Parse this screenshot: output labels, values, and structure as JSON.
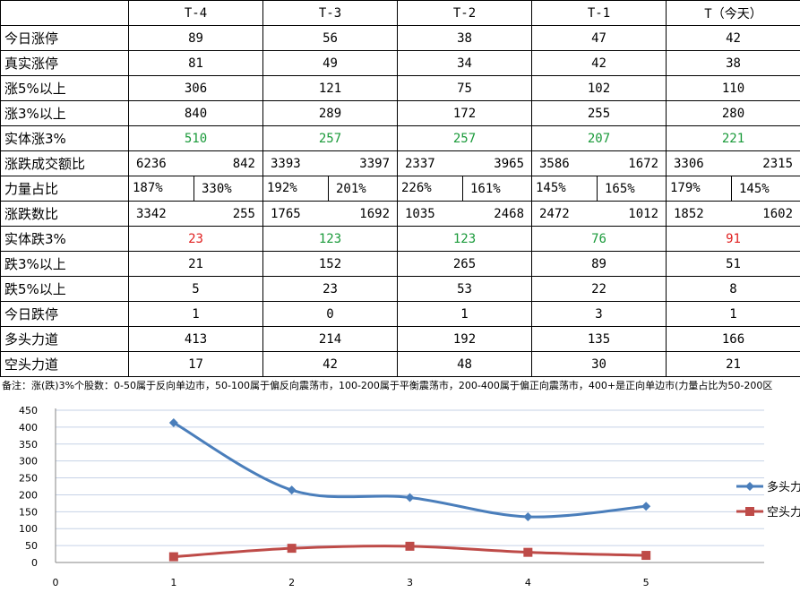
{
  "table": {
    "headers": [
      "",
      "T-4",
      "T-3",
      "T-2",
      "T-1",
      "T（今天）"
    ],
    "rows": [
      {
        "label": "今日涨停",
        "type": "single",
        "values": [
          "89",
          "56",
          "38",
          "47",
          "42"
        ]
      },
      {
        "label": "真实涨停",
        "type": "single",
        "values": [
          "81",
          "49",
          "34",
          "42",
          "38"
        ]
      },
      {
        "label": "涨5%以上",
        "type": "single",
        "values": [
          "306",
          "121",
          "75",
          "102",
          "110"
        ]
      },
      {
        "label": "涨3%以上",
        "type": "single",
        "values": [
          "840",
          "289",
          "172",
          "255",
          "280"
        ]
      },
      {
        "label": "实体涨3%",
        "type": "single",
        "values": [
          "510",
          "257",
          "257",
          "207",
          "221"
        ],
        "colors": [
          "green",
          "green",
          "green",
          "green",
          "green"
        ]
      },
      {
        "label": "涨跌成交额比",
        "type": "pair",
        "values": [
          [
            "6236",
            "842"
          ],
          [
            "3393",
            "3397"
          ],
          [
            "2337",
            "3965"
          ],
          [
            "3586",
            "1672"
          ],
          [
            "3306",
            "2315"
          ]
        ]
      },
      {
        "label": "力量占比",
        "type": "boxed",
        "values": [
          [
            "187%",
            "330%"
          ],
          [
            "192%",
            "201%"
          ],
          [
            "226%",
            "161%"
          ],
          [
            "145%",
            "165%"
          ],
          [
            "179%",
            "145%"
          ]
        ]
      },
      {
        "label": "涨跌数比",
        "type": "pair",
        "values": [
          [
            "3342",
            "255"
          ],
          [
            "1765",
            "1692"
          ],
          [
            "1035",
            "2468"
          ],
          [
            "2472",
            "1012"
          ],
          [
            "1852",
            "1602"
          ]
        ]
      },
      {
        "label": "实体跌3%",
        "type": "single",
        "values": [
          "23",
          "123",
          "123",
          "76",
          "91"
        ],
        "colors": [
          "red",
          "green",
          "green",
          "green",
          "red"
        ]
      },
      {
        "label": "跌3%以上",
        "type": "single",
        "values": [
          "21",
          "152",
          "265",
          "89",
          "51"
        ]
      },
      {
        "label": "跌5%以上",
        "type": "single",
        "values": [
          "5",
          "23",
          "53",
          "22",
          "8"
        ]
      },
      {
        "label": "今日跌停",
        "type": "single",
        "values": [
          "1",
          "0",
          "1",
          "3",
          "1"
        ]
      },
      {
        "label": "多头力道",
        "type": "single",
        "values": [
          "413",
          "214",
          "192",
          "135",
          "166"
        ]
      },
      {
        "label": "空头力道",
        "type": "single",
        "values": [
          "17",
          "42",
          "48",
          "30",
          "21"
        ]
      }
    ]
  },
  "note": "备注：涨(跌)3%个股数：0-50属于反向单边市，50-100属于偏反向震荡市，100-200属于平衡震荡市，200-400属于偏正向震荡市，400+是正向单边市(力量占比为50-200区",
  "colors": {
    "green": "#1a9a3a",
    "red": "#e02020",
    "bull": "#4a7ebb",
    "bear": "#be4b48",
    "grid": "#c6d2e6"
  },
  "chart_data": {
    "type": "line",
    "title": "",
    "xlabel": "",
    "ylabel": "",
    "xlim": [
      0,
      6
    ],
    "ylim": [
      0,
      450
    ],
    "yticks": [
      0,
      50,
      100,
      150,
      200,
      250,
      300,
      350,
      400,
      450
    ],
    "xticks": [
      0,
      1,
      2,
      3,
      4,
      5
    ],
    "grid": true,
    "legend": "right",
    "smooth": true,
    "x": [
      1,
      2,
      3,
      4,
      5
    ],
    "series": [
      {
        "name": "多头力道",
        "values": [
          413,
          214,
          192,
          135,
          166
        ],
        "color": "#4a7ebb",
        "marker": "diamond"
      },
      {
        "name": "空头力道",
        "values": [
          17,
          42,
          48,
          30,
          21
        ],
        "color": "#be4b48",
        "marker": "square"
      }
    ]
  }
}
